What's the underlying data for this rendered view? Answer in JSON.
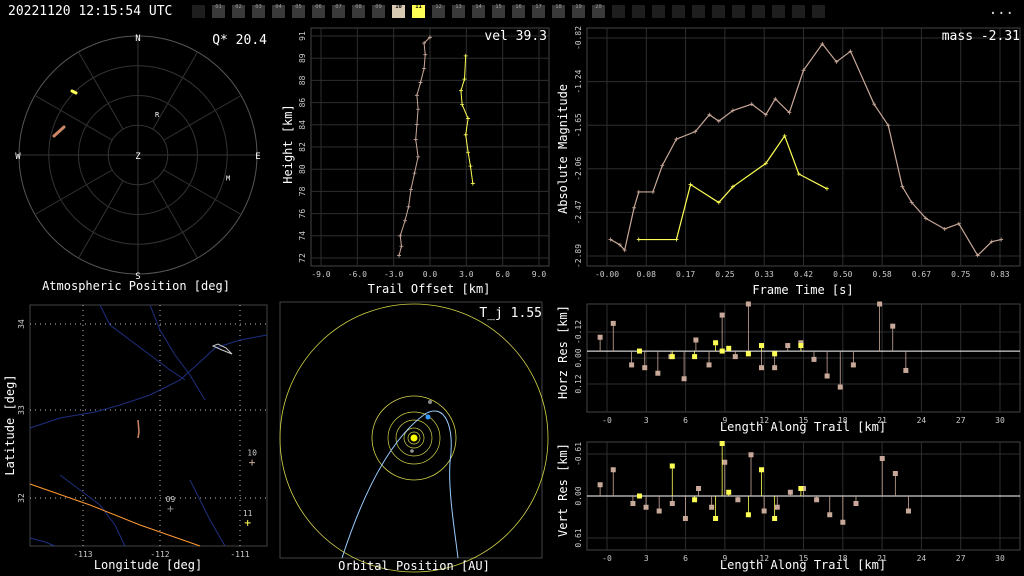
{
  "header": {
    "timestamp": "20221120 12:15:54 UTC",
    "menu": "..."
  },
  "stations": [
    {
      "label": "",
      "state": "off"
    },
    {
      "label": "01",
      "state": "on"
    },
    {
      "label": "02",
      "state": "on"
    },
    {
      "label": "03",
      "state": "on"
    },
    {
      "label": "04",
      "state": "on"
    },
    {
      "label": "05",
      "state": "on"
    },
    {
      "label": "06",
      "state": "on"
    },
    {
      "label": "07",
      "state": "on"
    },
    {
      "label": "08",
      "state": "on"
    },
    {
      "label": "09",
      "state": "on"
    },
    {
      "label": "10",
      "state": "sel"
    },
    {
      "label": "11",
      "state": "lit"
    },
    {
      "label": "12",
      "state": "on"
    },
    {
      "label": "13",
      "state": "on"
    },
    {
      "label": "14",
      "state": "on"
    },
    {
      "label": "15",
      "state": "on"
    },
    {
      "label": "16",
      "state": "on"
    },
    {
      "label": "17",
      "state": "on"
    },
    {
      "label": "18",
      "state": "on"
    },
    {
      "label": "19",
      "state": "on"
    },
    {
      "label": "20",
      "state": "on"
    },
    {
      "label": "",
      "state": "off"
    },
    {
      "label": "",
      "state": "off"
    },
    {
      "label": "",
      "state": "off"
    },
    {
      "label": "",
      "state": "off"
    },
    {
      "label": "",
      "state": "off"
    },
    {
      "label": "",
      "state": "off"
    },
    {
      "label": "",
      "state": "off"
    },
    {
      "label": "",
      "state": "off"
    },
    {
      "label": "",
      "state": "off"
    },
    {
      "label": "",
      "state": "off"
    },
    {
      "label": "",
      "state": "off"
    }
  ],
  "colors": {
    "station_a": "#ffff55",
    "station_b": "#c8a898",
    "trail": "#cc8866",
    "border": "#ff9933",
    "orbit": "#d4d44a",
    "earth": "#3399ff",
    "sun": "#ffff00",
    "comet": "#99ccff"
  },
  "chart_data": [
    {
      "id": "sky",
      "type": "scatter",
      "title": "Atmospheric Position [deg]",
      "annotation": "Q* 20.4",
      "directions": {
        "n": "N",
        "s": "S",
        "e": "E",
        "w": "W",
        "z": "Z"
      },
      "station_labels": [
        {
          "text": "R",
          "az": 25,
          "r": 0.38
        },
        {
          "text": "M",
          "az": 104,
          "r": 0.78
        }
      ]
    },
    {
      "id": "height",
      "type": "scatter",
      "xlabel": "Trail Offset [km]",
      "ylabel": "Height [km]",
      "annotation": "vel 39.3",
      "xlim": [
        -10,
        10
      ],
      "ylim": [
        71.5,
        92
      ],
      "xticks": [
        "-9.0",
        "-6.0",
        "-3.0",
        "0.0",
        "3.0",
        "6.0",
        "9.0"
      ],
      "yticks": [
        "72",
        "74",
        "76",
        "78",
        "80",
        "82",
        "84",
        "86",
        "88",
        "89",
        "91"
      ],
      "series": [
        {
          "color": "#c8a898",
          "points": [
            [
              -2.6,
              72.4
            ],
            [
              -2.4,
              73.2
            ],
            [
              -2.5,
              74.1
            ],
            [
              -2.1,
              75.4
            ],
            [
              -1.8,
              76.6
            ],
            [
              -1.6,
              78.1
            ],
            [
              -1.3,
              79.5
            ],
            [
              -1.0,
              80.9
            ],
            [
              -1.2,
              82.4
            ],
            [
              -1.1,
              83.7
            ],
            [
              -1.0,
              85.0
            ],
            [
              -1.1,
              86.2
            ],
            [
              -0.8,
              87.3
            ],
            [
              -0.5,
              88.5
            ],
            [
              -0.4,
              89.7
            ],
            [
              -0.5,
              90.7
            ],
            [
              0.0,
              91.2
            ]
          ]
        },
        {
          "color": "#ffff55",
          "points": [
            [
              3.6,
              78.6
            ],
            [
              3.4,
              80.1
            ],
            [
              3.2,
              81.3
            ],
            [
              3.0,
              82.8
            ],
            [
              3.2,
              84.2
            ],
            [
              2.7,
              85.4
            ],
            [
              2.6,
              86.6
            ],
            [
              2.9,
              87.6
            ],
            [
              3.0,
              89.6
            ]
          ]
        }
      ]
    },
    {
      "id": "magnitude",
      "type": "line",
      "xlabel": "Frame Time [s]",
      "ylabel": "Absolute Magnitude",
      "annotation": "mass -2.31",
      "xlim": [
        -0.05,
        0.87
      ],
      "ylim": [
        -3.0,
        -0.75
      ],
      "xticks": [
        "-0.00",
        "0.08",
        "0.17",
        "0.25",
        "0.33",
        "0.42",
        "0.50",
        "0.58",
        "0.67",
        "0.75",
        "0.83"
      ],
      "yticks": [
        "-2.89",
        "-2.47",
        "-2.06",
        "-1.65",
        "-1.24",
        "-0.82"
      ],
      "series": [
        {
          "color": "#c8a898",
          "points": [
            [
              0.0,
              -1.0
            ],
            [
              0.02,
              -0.95
            ],
            [
              0.03,
              -0.9
            ],
            [
              0.05,
              -1.3
            ],
            [
              0.06,
              -1.45
            ],
            [
              0.09,
              -1.45
            ],
            [
              0.11,
              -1.7
            ],
            [
              0.14,
              -1.95
            ],
            [
              0.18,
              -2.02
            ],
            [
              0.21,
              -2.18
            ],
            [
              0.23,
              -2.12
            ],
            [
              0.26,
              -2.22
            ],
            [
              0.3,
              -2.28
            ],
            [
              0.33,
              -2.18
            ],
            [
              0.35,
              -2.33
            ],
            [
              0.38,
              -2.2
            ],
            [
              0.41,
              -2.6
            ],
            [
              0.45,
              -2.85
            ],
            [
              0.48,
              -2.68
            ],
            [
              0.51,
              -2.78
            ],
            [
              0.56,
              -2.28
            ],
            [
              0.59,
              -2.08
            ],
            [
              0.62,
              -1.5
            ],
            [
              0.64,
              -1.35
            ],
            [
              0.67,
              -1.2
            ],
            [
              0.71,
              -1.1
            ],
            [
              0.74,
              -1.15
            ],
            [
              0.78,
              -0.85
            ],
            [
              0.81,
              -0.98
            ],
            [
              0.83,
              -1.0
            ]
          ]
        },
        {
          "color": "#ffff55",
          "points": [
            [
              0.06,
              -1.0
            ],
            [
              0.14,
              -1.0
            ],
            [
              0.17,
              -1.52
            ],
            [
              0.23,
              -1.35
            ],
            [
              0.26,
              -1.5
            ],
            [
              0.33,
              -1.72
            ],
            [
              0.37,
              -1.98
            ],
            [
              0.4,
              -1.62
            ],
            [
              0.46,
              -1.48
            ]
          ]
        }
      ]
    },
    {
      "id": "map",
      "type": "scatter",
      "title": "Longitude [deg]",
      "ylabel": "Latitude [deg]",
      "xlim": [
        -113.5,
        -110.8
      ],
      "ylim": [
        31.6,
        34.2
      ],
      "xticks": [
        "-113",
        "-112",
        "-111"
      ],
      "yticks": [
        "32",
        "33",
        "34"
      ],
      "stations": [
        {
          "label": "10",
          "lon": -110.97,
          "lat": 32.5
        },
        {
          "label": "09",
          "lon": -111.9,
          "lat": 32.0
        },
        {
          "label": "11",
          "lon": -111.02,
          "lat": 31.85
        }
      ]
    },
    {
      "id": "orbit",
      "type": "scatter",
      "title": "Orbital Position [AU]",
      "annotation": "T_j 1.55"
    },
    {
      "id": "horz",
      "type": "scatter",
      "xlabel": "Length Along Trail [km]",
      "ylabel": "Horz Res [km]",
      "xlim": [
        -2,
        31
      ],
      "ylim": [
        -0.22,
        0.17
      ],
      "xticks": [
        "-0",
        "3",
        "6",
        "9",
        "12",
        "15",
        "18",
        "21",
        "24",
        "27",
        "30"
      ],
      "yticks": [
        "0.12",
        "0.00",
        "-0.12"
      ],
      "series": [
        {
          "color": "#c8a898",
          "points": [
            [
              -1,
              0.05
            ],
            [
              0,
              0.1
            ],
            [
              1.4,
              -0.05
            ],
            [
              2.4,
              -0.06
            ],
            [
              3.4,
              -0.08
            ],
            [
              4.4,
              -0.02
            ],
            [
              5.4,
              -0.1
            ],
            [
              6.3,
              0.04
            ],
            [
              7.3,
              -0.05
            ],
            [
              8.3,
              0.13
            ],
            [
              9.3,
              -0.02
            ],
            [
              10.3,
              0.17
            ],
            [
              11.3,
              -0.06
            ],
            [
              12.3,
              -0.06
            ],
            [
              13.3,
              0.02
            ],
            [
              14.3,
              0.03
            ],
            [
              15.3,
              -0.03
            ],
            [
              16.3,
              -0.09
            ],
            [
              17.3,
              -0.13
            ],
            [
              18.3,
              -0.05
            ],
            [
              20.3,
              0.17
            ],
            [
              21.3,
              0.09
            ],
            [
              22.3,
              -0.07
            ]
          ]
        },
        {
          "color": "#ffff55",
          "points": [
            [
              2,
              0
            ],
            [
              4.5,
              -0.02
            ],
            [
              6.2,
              -0.02
            ],
            [
              7.8,
              0.03
            ],
            [
              8.3,
              0.0
            ],
            [
              8.8,
              0.01
            ],
            [
              10.3,
              -0.01
            ],
            [
              11.3,
              0.02
            ],
            [
              12.3,
              -0.01
            ],
            [
              14.3,
              0.02
            ]
          ]
        }
      ]
    },
    {
      "id": "vert",
      "type": "scatter",
      "xlabel": "Length Along Trail [km]",
      "ylabel": "Vert Res [km]",
      "xlim": [
        -2,
        31
      ],
      "ylim": [
        -0.72,
        0.72
      ],
      "xticks": [
        "-0",
        "3",
        "6",
        "9",
        "12",
        "15",
        "18",
        "21",
        "24",
        "27",
        "30"
      ],
      "yticks": [
        "0.61",
        "0.00",
        "-0.61"
      ],
      "series": [
        {
          "color": "#c8a898",
          "points": [
            [
              -1,
              0.15
            ],
            [
              0,
              0.35
            ],
            [
              1.5,
              -0.1
            ],
            [
              2.5,
              -0.15
            ],
            [
              3.5,
              -0.2
            ],
            [
              4.5,
              -0.1
            ],
            [
              5.5,
              -0.3
            ],
            [
              6.5,
              0.1
            ],
            [
              7.5,
              -0.15
            ],
            [
              8.5,
              0.45
            ],
            [
              9.5,
              -0.05
            ],
            [
              10.5,
              0.55
            ],
            [
              11.5,
              -0.2
            ],
            [
              12.5,
              -0.15
            ],
            [
              13.5,
              0.05
            ],
            [
              14.5,
              0.1
            ],
            [
              15.5,
              -0.05
            ],
            [
              16.5,
              -0.25
            ],
            [
              17.5,
              -0.35
            ],
            [
              18.5,
              -0.1
            ],
            [
              20.5,
              0.5
            ],
            [
              21.5,
              0.3
            ],
            [
              22.5,
              -0.2
            ]
          ]
        },
        {
          "color": "#ffff55",
          "points": [
            [
              2,
              0
            ],
            [
              4.5,
              0.4
            ],
            [
              6.2,
              -0.05
            ],
            [
              7.8,
              -0.3
            ],
            [
              8.3,
              0.7
            ],
            [
              8.8,
              0.05
            ],
            [
              10.3,
              -0.25
            ],
            [
              11.3,
              0.35
            ],
            [
              12.3,
              -0.3
            ],
            [
              14.3,
              0.1
            ]
          ]
        }
      ]
    }
  ]
}
